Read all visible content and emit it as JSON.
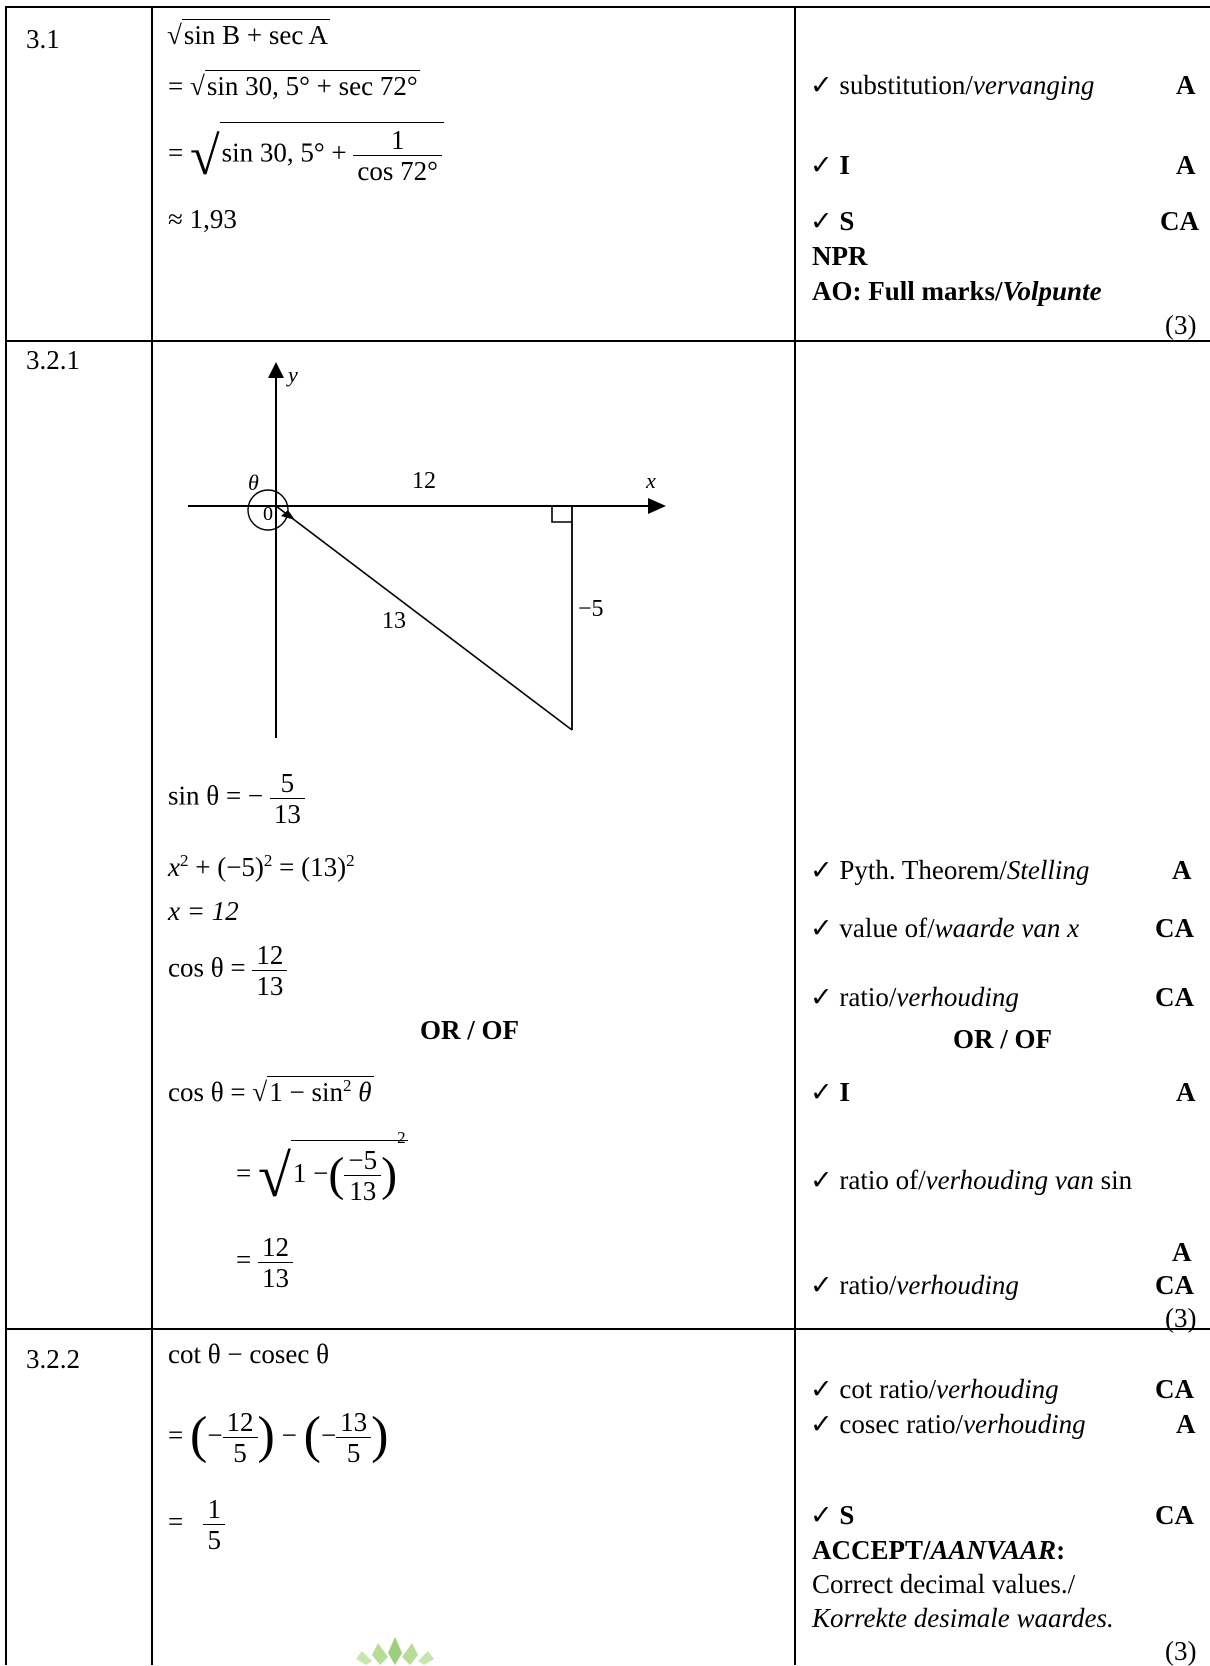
{
  "rows": {
    "r31": {
      "number": "3.1",
      "lines": {
        "l1": "sin B + sec A",
        "l2a": "sin 30, 5° + sec 72°",
        "l3a": "sin 30, 5° +",
        "l3n": "1",
        "l3d": "cos 72°",
        "l4": "≈ 1,93"
      },
      "memo": {
        "m1a": "substitution/",
        "m1b": "vervanging",
        "m1c": "A",
        "m2a": "I",
        "m2c": "A",
        "m3a": "S",
        "m3c": "CA",
        "m4": "NPR",
        "m5a": "AO: Full marks/",
        "m5b": "Volpunte",
        "total": "(3)"
      }
    },
    "r321": {
      "number": "3.2.1",
      "diagram": {
        "y": "y",
        "x": "x",
        "theta": "θ",
        "zero": "0",
        "adj": "12",
        "hyp": "13",
        "opp": "−5"
      },
      "lines": {
        "s1": "sin θ = −",
        "s1n": "5",
        "s1d": "13",
        "p1": "x",
        "p1b": "2",
        "p1c": " + (−5)",
        "p1d": "2",
        "p1e": " = (13)",
        "p1f": "2",
        "x12": "x = 12",
        "c1": "cos θ =",
        "c1n": "12",
        "c1d": "13",
        "or": "OR / OF",
        "c2": "cos θ =",
        "c2r": "1 − sin",
        "c2s": "2",
        "c2t": " θ",
        "c3": "=",
        "c3a": "1 −",
        "c3n": "−5",
        "c3d": "13",
        "c3s": "2",
        "c4": "=",
        "c4n": "12",
        "c4d": "13"
      },
      "memo": {
        "m1a": "Pyth. Theorem/",
        "m1b": "Stelling",
        "m1c": "A",
        "m2a": "value of/",
        "m2b": "waarde van  x",
        "m2c": "CA",
        "m3a": "ratio/",
        "m3b": "verhouding",
        "m3c": "CA",
        "or": "OR / OF",
        "m4a": "I",
        "m4c": "A",
        "m5a": "ratio of/",
        "m5b": "verhouding van",
        "m5d": " sin",
        "m6c": "A",
        "m7a": "ratio/",
        "m7b": "verhouding",
        "m7c": "CA",
        "total": "(3)"
      }
    },
    "r322": {
      "number": "3.2.2",
      "lines": {
        "l1": "cot θ − cosec θ",
        "l2eq": "=",
        "l2n1": "12",
        "l2d1": "5",
        "l2n2": "13",
        "l2d2": "5",
        "l3eq": "=",
        "l3n": "1",
        "l3d": "5"
      },
      "memo": {
        "m1a": "cot ratio/",
        "m1b": "verhouding",
        "m1c": "CA",
        "m2a": "cosec ratio/",
        "m2b": "verhouding",
        "m2c": "A",
        "m3a": "S",
        "m3c": "CA",
        "m4a": "ACCEPT/",
        "m4b": "AANVAAR",
        "m4c": ":",
        "m5": "Correct decimal values./",
        "m6": "Korrekte desimale waardes.",
        "total": "(3)"
      }
    }
  },
  "tick": "✓"
}
